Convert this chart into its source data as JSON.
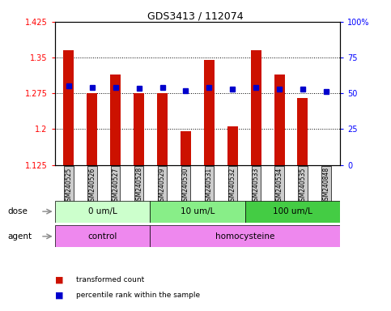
{
  "title": "GDS3413 / 112074",
  "samples": [
    "GSM240525",
    "GSM240526",
    "GSM240527",
    "GSM240528",
    "GSM240529",
    "GSM240530",
    "GSM240531",
    "GSM240532",
    "GSM240533",
    "GSM240534",
    "GSM240535",
    "GSM240848"
  ],
  "bar_values": [
    1.365,
    1.275,
    1.315,
    1.275,
    1.275,
    1.195,
    1.345,
    1.205,
    1.365,
    1.315,
    1.265,
    1.115
  ],
  "blue_values": [
    1.291,
    1.287,
    1.287,
    1.286,
    1.287,
    1.281,
    1.287,
    1.284,
    1.287,
    1.284,
    1.284,
    1.279
  ],
  "bar_color": "#cc1100",
  "blue_color": "#0000cc",
  "ymin": 1.125,
  "ymax": 1.425,
  "yticks_red": [
    1.125,
    1.2,
    1.275,
    1.35,
    1.425
  ],
  "yticks_blue": [
    0,
    25,
    50,
    75,
    100
  ],
  "gridlines": [
    1.2,
    1.275,
    1.35
  ],
  "dose_groups": [
    {
      "label": "0 um/L",
      "start": 0,
      "end": 4,
      "color": "#ccffcc"
    },
    {
      "label": "10 um/L",
      "start": 4,
      "end": 8,
      "color": "#88ee88"
    },
    {
      "label": "100 um/L",
      "start": 8,
      "end": 12,
      "color": "#44cc44"
    }
  ],
  "agent_groups": [
    {
      "label": "control",
      "start": 0,
      "end": 4,
      "color": "#ee88ee"
    },
    {
      "label": "homocysteine",
      "start": 4,
      "end": 12,
      "color": "#ee88ee"
    }
  ],
  "dose_label": "dose",
  "agent_label": "agent",
  "legend_bar": "transformed count",
  "legend_blue": "percentile rank within the sample",
  "label_bg": "#cccccc",
  "plot_bg": "#ffffff"
}
